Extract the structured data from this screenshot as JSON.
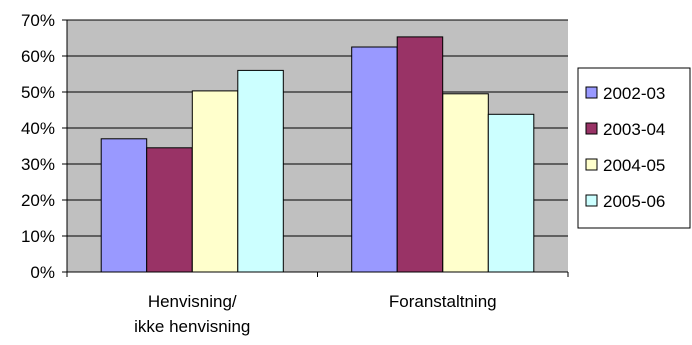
{
  "chart_data": {
    "type": "bar",
    "categories": [
      "Henvisning/\nikke henvisning",
      "Foranstaltning"
    ],
    "series": [
      {
        "name": "2002-03",
        "values": [
          37,
          62.5
        ],
        "color": "#9999FF"
      },
      {
        "name": "2003-04",
        "values": [
          34.5,
          65.3
        ],
        "color": "#993366"
      },
      {
        "name": "2004-05",
        "values": [
          50.3,
          49.5
        ],
        "color": "#FFFFCC"
      },
      {
        "name": "2005-06",
        "values": [
          56,
          43.8
        ],
        "color": "#CCFFFF"
      }
    ],
    "ylim": [
      0,
      70
    ],
    "ytick_labels": [
      "0%",
      "10%",
      "20%",
      "30%",
      "40%",
      "50%",
      "60%",
      "70%"
    ],
    "grid": true,
    "plot_background": "#C0C0C0",
    "legend_position": "right"
  }
}
